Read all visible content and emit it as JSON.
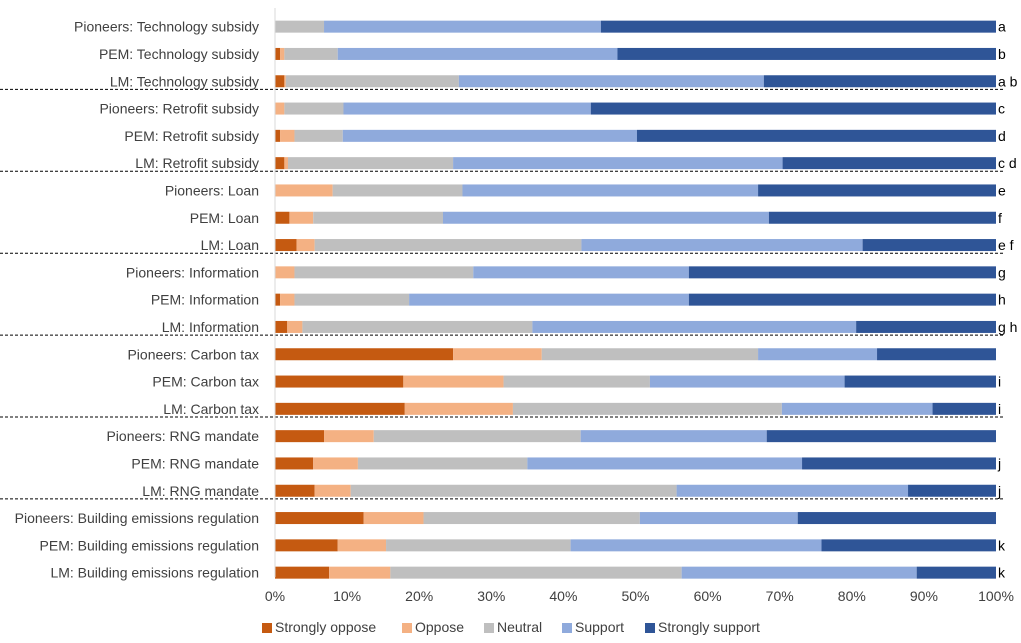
{
  "chart_data": {
    "type": "bar",
    "orientation": "horizontal-stacked-100",
    "xlim": [
      0,
      100
    ],
    "x_ticks": [
      "0%",
      "10%",
      "20%",
      "30%",
      "40%",
      "50%",
      "60%",
      "70%",
      "80%",
      "90%",
      "100%"
    ],
    "colors": [
      "#C55A11",
      "#F4B183",
      "#BFBFBF",
      "#8FAADC",
      "#2F5597"
    ],
    "categories": [
      "Pioneers: Technology subsidy",
      "PEM: Technology subsidy",
      "LM: Technology subsidy",
      "Pioneers: Retrofit subsidy",
      "PEM: Retrofit subsidy",
      "LM: Retrofit subsidy",
      "Pioneers: Loan",
      "PEM: Loan",
      "LM: Loan",
      "Pioneers: Information",
      "PEM: Information",
      "LM: Information",
      "Pioneers: Carbon tax",
      "PEM: Carbon tax",
      "LM: Carbon tax",
      "Pioneers: RNG mandate",
      "PEM: RNG mandate",
      "LM: RNG mandate",
      "Pioneers: Building emissions regulation",
      "PEM: Building emissions regulation",
      "LM: Building emissions regulation"
    ],
    "significance_labels": [
      "a",
      "b",
      "a b",
      "c",
      "d",
      "c d",
      "e",
      "f",
      "e f",
      "g",
      "h",
      "g h",
      "",
      "i",
      "i",
      "",
      "j",
      "j",
      "",
      "k",
      "k"
    ],
    "series": [
      {
        "name": "Strongly oppose",
        "values": [
          0,
          0.7,
          1.3,
          0,
          0.7,
          1.3,
          0,
          2,
          3,
          0,
          0.7,
          1.7,
          24.7,
          17.8,
          18,
          6.8,
          5.3,
          5.5,
          12.3,
          8.7,
          7.5
        ]
      },
      {
        "name": "Oppose",
        "values": [
          0,
          0.6,
          0.2,
          1.3,
          2,
          0.5,
          8,
          3.3,
          2.5,
          2.7,
          2,
          2.1,
          12.3,
          13.9,
          15,
          6.9,
          6.2,
          5,
          8.3,
          6.7,
          8.5
        ]
      },
      {
        "name": "Neutral",
        "values": [
          6.8,
          7.4,
          24,
          8.2,
          6.7,
          22.9,
          18,
          18,
          37,
          24.8,
          15.9,
          31.9,
          30,
          20.3,
          37.3,
          28.7,
          23.5,
          45.2,
          30,
          25.6,
          40.4
        ]
      },
      {
        "name": "Support",
        "values": [
          38.4,
          38.8,
          42.3,
          34.3,
          40.8,
          45.7,
          41,
          45.2,
          39,
          29.9,
          38.8,
          44.9,
          16.5,
          27,
          20.9,
          25.8,
          38.1,
          32.1,
          21.9,
          34.8,
          32.6
        ]
      },
      {
        "name": "Strongly support",
        "values": [
          54.8,
          52.5,
          32.2,
          56.2,
          49.8,
          29.6,
          33,
          31.5,
          18.5,
          42.6,
          42.6,
          19.4,
          16.5,
          21,
          8.8,
          31.8,
          26.9,
          12.2,
          27.5,
          24.2,
          11
        ]
      }
    ],
    "group_size": 3,
    "legend_position": "bottom"
  }
}
